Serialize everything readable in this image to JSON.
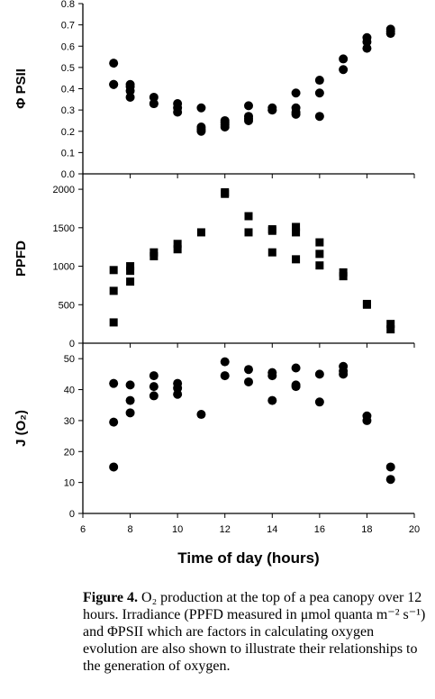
{
  "chart_data": [
    {
      "type": "scatter",
      "ylabel": "Φ PSII",
      "ylim": [
        0,
        0.8
      ],
      "yticks": [
        "0.0",
        "0.1",
        "0.2",
        "0.3",
        "0.4",
        "0.5",
        "0.6",
        "0.7",
        "0.8"
      ],
      "marker": "circle",
      "points": [
        [
          7.3,
          0.52
        ],
        [
          7.3,
          0.42
        ],
        [
          7.3,
          0.42
        ],
        [
          8,
          0.42
        ],
        [
          8,
          0.41
        ],
        [
          8,
          0.39
        ],
        [
          8,
          0.36
        ],
        [
          9,
          0.36
        ],
        [
          9,
          0.33
        ],
        [
          9,
          0.33
        ],
        [
          10,
          0.33
        ],
        [
          10,
          0.31
        ],
        [
          10,
          0.29
        ],
        [
          11,
          0.31
        ],
        [
          11,
          0.22
        ],
        [
          11,
          0.21
        ],
        [
          11,
          0.2
        ],
        [
          12,
          0.25
        ],
        [
          12,
          0.24
        ],
        [
          12,
          0.23
        ],
        [
          12,
          0.22
        ],
        [
          13,
          0.32
        ],
        [
          13,
          0.27
        ],
        [
          13,
          0.26
        ],
        [
          13,
          0.25
        ],
        [
          14,
          0.31
        ],
        [
          14,
          0.3
        ],
        [
          14,
          0.3
        ],
        [
          15,
          0.38
        ],
        [
          15,
          0.31
        ],
        [
          15,
          0.29
        ],
        [
          15,
          0.28
        ],
        [
          16,
          0.44
        ],
        [
          16,
          0.38
        ],
        [
          16,
          0.27
        ],
        [
          17,
          0.54
        ],
        [
          17,
          0.49
        ],
        [
          18,
          0.64
        ],
        [
          18,
          0.62
        ],
        [
          18,
          0.59
        ],
        [
          19,
          0.68
        ],
        [
          19,
          0.67
        ],
        [
          19,
          0.66
        ]
      ]
    },
    {
      "type": "scatter",
      "ylabel": "PPFD",
      "ylim": [
        0,
        2200
      ],
      "yticks": [
        "0",
        "500",
        "1000",
        "1500",
        "2000"
      ],
      "marker": "square",
      "points": [
        [
          7.3,
          950
        ],
        [
          7.3,
          680
        ],
        [
          7.3,
          270
        ],
        [
          8,
          1000
        ],
        [
          8,
          940
        ],
        [
          8,
          800
        ],
        [
          9,
          1180
        ],
        [
          9,
          1130
        ],
        [
          10,
          1290
        ],
        [
          10,
          1220
        ],
        [
          11,
          1440
        ],
        [
          12,
          1960
        ],
        [
          12,
          1940
        ],
        [
          13,
          1650
        ],
        [
          13,
          1440
        ],
        [
          14,
          1480
        ],
        [
          14,
          1460
        ],
        [
          14,
          1180
        ],
        [
          15,
          1510
        ],
        [
          15,
          1440
        ],
        [
          15,
          1090
        ],
        [
          16,
          1310
        ],
        [
          16,
          1160
        ],
        [
          16,
          1010
        ],
        [
          17,
          920
        ],
        [
          17,
          870
        ],
        [
          18,
          510
        ],
        [
          18,
          500
        ],
        [
          19,
          250
        ],
        [
          19,
          180
        ]
      ]
    },
    {
      "type": "scatter",
      "ylabel": "J (O₂)",
      "ylim": [
        0,
        55
      ],
      "yticks": [
        "0",
        "10",
        "20",
        "30",
        "40",
        "50"
      ],
      "marker": "circle",
      "xlabel": "Time of day (hours)",
      "xlim": [
        6,
        20
      ],
      "xticks": [
        "6",
        "8",
        "10",
        "12",
        "14",
        "16",
        "18",
        "20"
      ],
      "points": [
        [
          7.3,
          42
        ],
        [
          7.3,
          29.5
        ],
        [
          7.3,
          15
        ],
        [
          8,
          41.5
        ],
        [
          8,
          36.5
        ],
        [
          8,
          32.5
        ],
        [
          9,
          44.5
        ],
        [
          9,
          41
        ],
        [
          9,
          38
        ],
        [
          10,
          42
        ],
        [
          10,
          40.5
        ],
        [
          10,
          38.5
        ],
        [
          11,
          32
        ],
        [
          12,
          49
        ],
        [
          12,
          44.5
        ],
        [
          13,
          46.5
        ],
        [
          13,
          42.5
        ],
        [
          14,
          45.5
        ],
        [
          14,
          44.5
        ],
        [
          14,
          36.5
        ],
        [
          15,
          47
        ],
        [
          15,
          41.5
        ],
        [
          15,
          41
        ],
        [
          16,
          45
        ],
        [
          16,
          36
        ],
        [
          17,
          47.5
        ],
        [
          17,
          46
        ],
        [
          17,
          45
        ],
        [
          18,
          31.5
        ],
        [
          18,
          30
        ],
        [
          19,
          15
        ],
        [
          19,
          11
        ]
      ]
    }
  ],
  "caption": {
    "label": "Figure 4.",
    "text": "O₂ production at the top of a pea canopy over 12 hours.  Irradiance (PPFD measured in μmol quanta m⁻² s⁻¹) and ΦPSII which are factors in calculating oxygen evolution are also shown to illustrate their relationships to the generation of oxygen."
  }
}
